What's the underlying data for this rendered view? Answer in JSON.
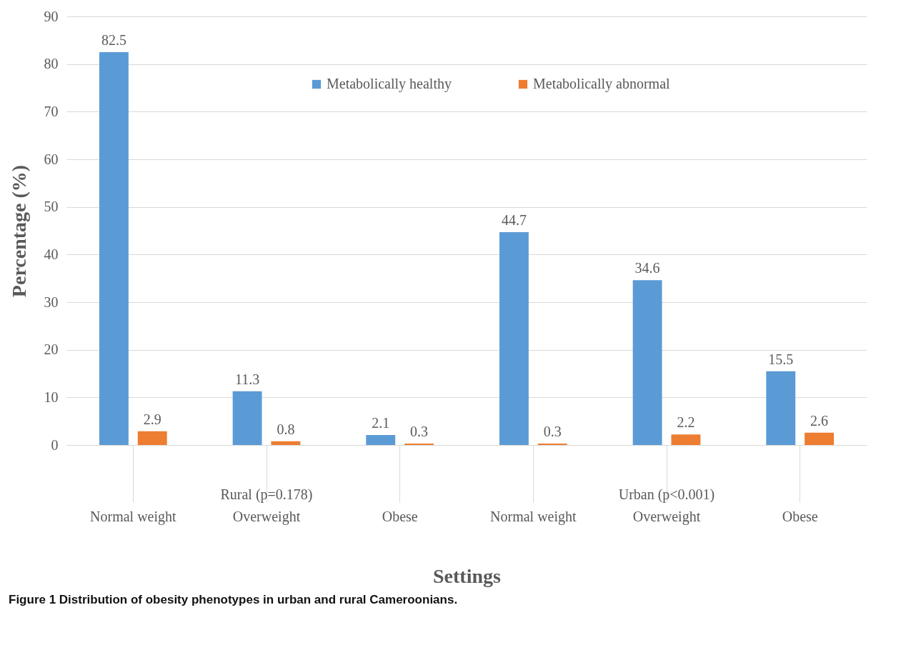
{
  "chart_data": {
    "type": "bar",
    "xlabel": "Settings",
    "ylabel": "Percentage (%)",
    "categories": [
      "Normal weight",
      "Overweight",
      "Obese",
      "Normal weight",
      "Overweight",
      "Obese"
    ],
    "series": [
      {
        "name": "Metabolically healthy",
        "color": "#5b9bd5",
        "values": [
          82.5,
          11.3,
          2.1,
          44.7,
          34.6,
          15.5
        ]
      },
      {
        "name": "Metabolically abnormal",
        "color": "#ed7d31",
        "values": [
          2.9,
          0.8,
          0.3,
          0.3,
          2.2,
          2.6
        ]
      }
    ],
    "ylim": [
      0,
      90
    ],
    "yticks": [
      0,
      10,
      20,
      30,
      40,
      50,
      60,
      70,
      80,
      90
    ],
    "grid": "y",
    "legend": "top",
    "data_labels": true,
    "annotations": [
      "Rural (p=0.178)",
      "Urban (p<0.001)",
      "Figure 1 Distribution of obesity phenotypes in urban and rural Cameroonians."
    ]
  }
}
